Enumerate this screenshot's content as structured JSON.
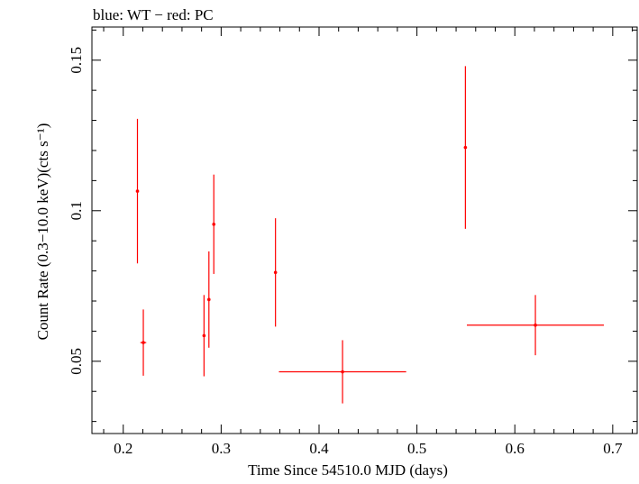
{
  "chart_data": {
    "type": "scatter",
    "title": "blue: WT − red: PC",
    "xlabel": "Time Since 54510.0 MJD (days)",
    "ylabel": "Count Rate (0.3−10.0 keV)(cts s⁻¹)",
    "xlim": [
      0.168,
      0.725
    ],
    "ylim": [
      0.026,
      0.161
    ],
    "x_ticks": [
      0.2,
      0.3,
      0.4,
      0.5,
      0.6,
      0.7
    ],
    "x_tick_labels": [
      "0.2",
      "0.3",
      "0.4",
      "0.5",
      "0.6",
      "0.7"
    ],
    "y_ticks": [
      0.05,
      0.1,
      0.15
    ],
    "y_tick_labels": [
      "0.05",
      "0.1",
      "0.15"
    ],
    "x_minor_step": 0.02,
    "y_minor_step": 0.01,
    "grid": false,
    "series": [
      {
        "name": "PC",
        "color": "#ff0000",
        "points": [
          {
            "x": 0.2145,
            "y": 0.1065,
            "xerr": 0.001,
            "yerr_low": 0.024,
            "yerr_high": 0.024
          },
          {
            "x": 0.2205,
            "y": 0.0562,
            "xerr": 0.003,
            "yerr_low": 0.011,
            "yerr_high": 0.011
          },
          {
            "x": 0.2825,
            "y": 0.0585,
            "xerr": 0.001,
            "yerr_low": 0.0135,
            "yerr_high": 0.0135
          },
          {
            "x": 0.2875,
            "y": 0.0705,
            "xerr": 0.001,
            "yerr_low": 0.016,
            "yerr_high": 0.016
          },
          {
            "x": 0.2925,
            "y": 0.0955,
            "xerr": 0.001,
            "yerr_low": 0.0165,
            "yerr_high": 0.0165
          },
          {
            "x": 0.3555,
            "y": 0.0795,
            "xerr": 0.001,
            "yerr_low": 0.018,
            "yerr_high": 0.018
          },
          {
            "x": 0.424,
            "y": 0.0465,
            "xerr": 0.065,
            "yerr_low": 0.0105,
            "yerr_high": 0.0105
          },
          {
            "x": 0.5495,
            "y": 0.121,
            "xerr": 0.001,
            "yerr_low": 0.027,
            "yerr_high": 0.027
          },
          {
            "x": 0.621,
            "y": 0.062,
            "xerr": 0.07,
            "yerr_low": 0.01,
            "yerr_high": 0.01
          }
        ]
      }
    ]
  }
}
